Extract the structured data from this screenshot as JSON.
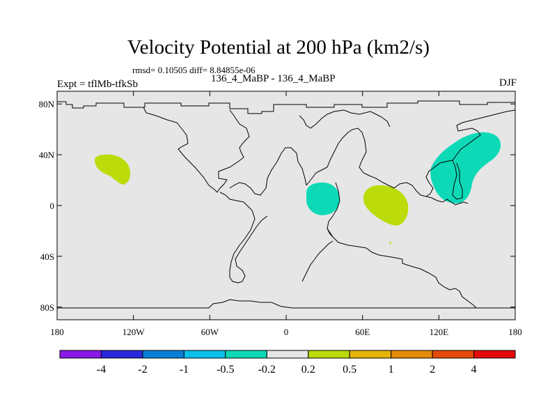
{
  "header": {
    "title": "Velocity Potential at 200 hPa (km2/s)",
    "stats": "rmsd= 0.10505 diff= 8.84855e-06",
    "experiment": "Expt = tflMb-tfkSb",
    "comparison": "136_4_MaBP - 136_4_MaBP",
    "season": "DJF"
  },
  "chart_data": {
    "type": "heatmap",
    "title": "Velocity Potential at 200 hPa (km2/s)",
    "xlabel": "",
    "ylabel": "",
    "xlim": [
      -180,
      180
    ],
    "ylim": [
      -90,
      90
    ],
    "x_ticks": [
      -180,
      -120,
      -60,
      0,
      60,
      120,
      180
    ],
    "x_tick_labels": [
      "180",
      "120W",
      "60W",
      "0",
      "60E",
      "120E",
      "180"
    ],
    "y_ticks": [
      80,
      40,
      0,
      -40,
      -80
    ],
    "y_tick_labels": [
      "80N",
      "40N",
      "0",
      "40S",
      "80S"
    ],
    "colorbar": {
      "bins": [
        {
          "color": "#8a19e6"
        },
        {
          "color": "#2a28da"
        },
        {
          "color": "#0a7fd9"
        },
        {
          "color": "#0ac0ea"
        },
        {
          "color": "#0ed9b7"
        },
        {
          "color": "#e6e6e6"
        },
        {
          "color": "#bcdb0a"
        },
        {
          "color": "#e6b50a"
        },
        {
          "color": "#e68a0a"
        },
        {
          "color": "#e64a0a"
        },
        {
          "color": "#e40a0a"
        }
      ],
      "tick_labels": [
        "-4",
        "-2",
        "-1",
        "-0.5",
        "-0.2",
        "0.2",
        "0.5",
        "1",
        "2",
        "4"
      ]
    },
    "anomalies": [
      {
        "name": "North Pacific positive",
        "category": "0.2 to 0.5",
        "color": "#bcdb0a",
        "lon_range": [
          -149,
          -127
        ],
        "lat_range": [
          17,
          38
        ]
      },
      {
        "name": "Equatorial Africa negative",
        "category": "-0.5 to -0.2",
        "color": "#0ed9b7",
        "lon_range": [
          15,
          43
        ],
        "lat_range": [
          -8,
          17
        ]
      },
      {
        "name": "Western Indian Ocean positive",
        "category": "0.2 to 0.5",
        "color": "#bcdb0a",
        "lon_range": [
          61,
          95
        ],
        "lat_range": [
          -16,
          17
        ]
      },
      {
        "name": "East Asia / NW Pacific negative",
        "category": "-0.5 to -0.2",
        "color": "#0ed9b7",
        "lon_range": [
          113,
          168
        ],
        "lat_range": [
          1,
          57
        ]
      }
    ]
  }
}
